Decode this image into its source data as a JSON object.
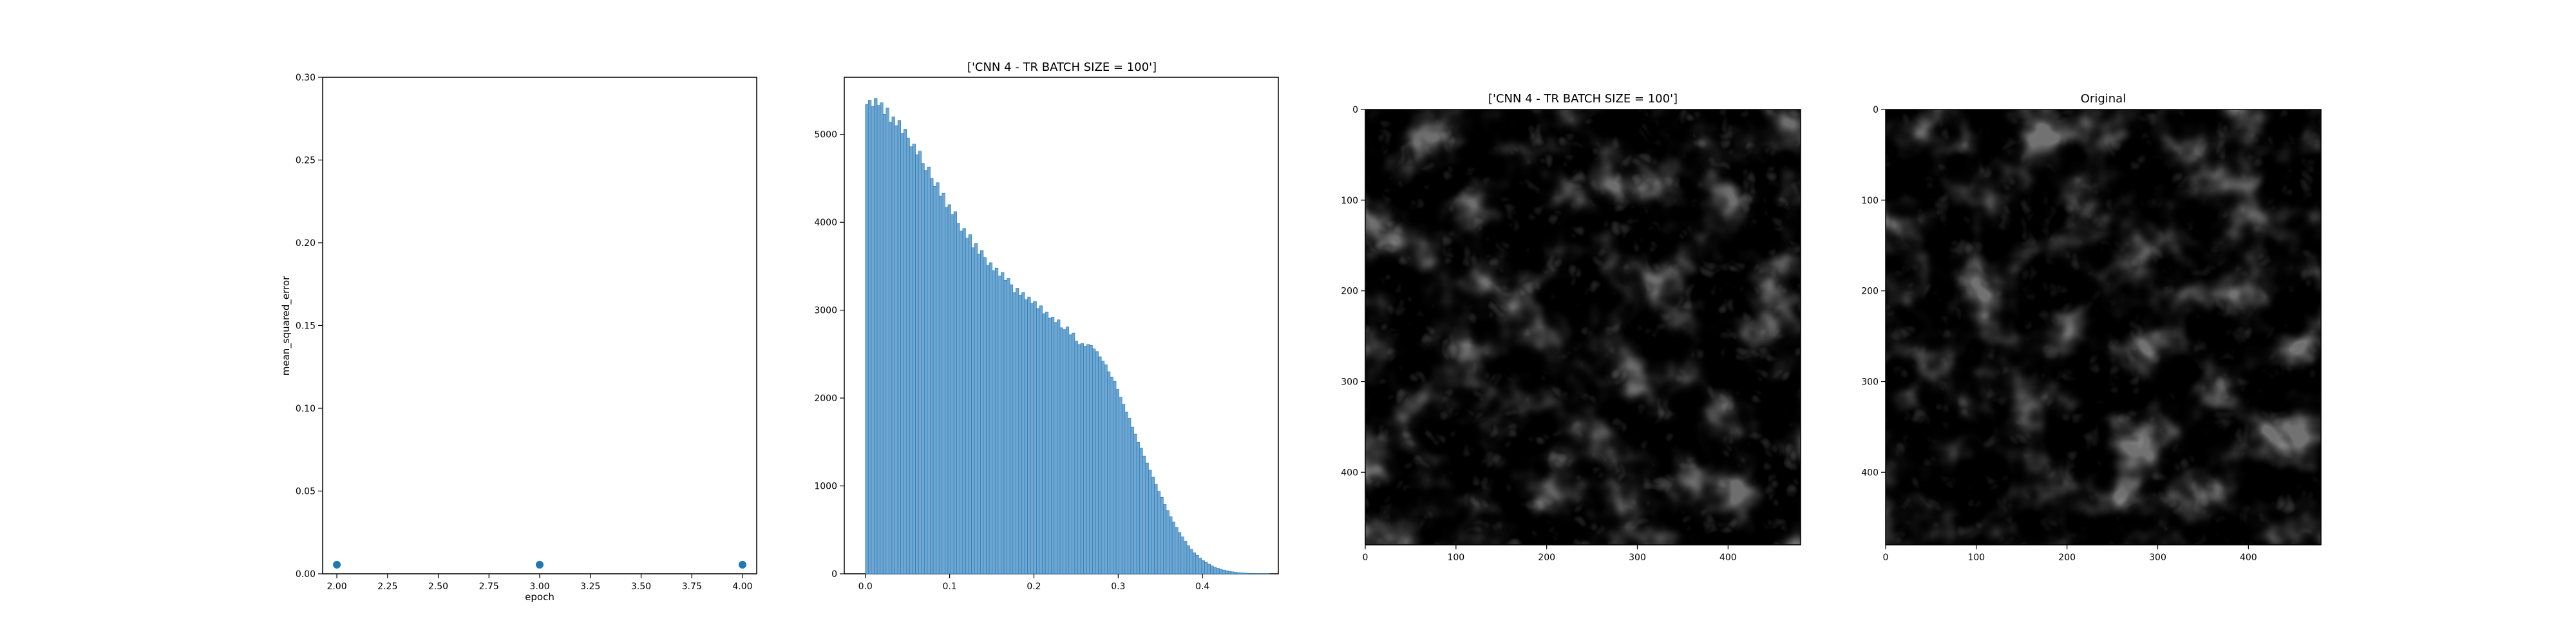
{
  "chart_data": [
    {
      "type": "scatter",
      "title": "",
      "xlabel": "epoch",
      "ylabel": "mean_squared_error",
      "xlim": [
        1.93,
        4.07
      ],
      "ylim": [
        0.0,
        0.3
      ],
      "x_ticks": [
        "2.00",
        "2.25",
        "2.50",
        "2.75",
        "3.00",
        "3.25",
        "3.50",
        "3.75",
        "4.00"
      ],
      "y_ticks": [
        "0.00",
        "0.05",
        "0.10",
        "0.15",
        "0.20",
        "0.25",
        "0.30"
      ],
      "points": [
        {
          "x": 2.0,
          "y": 0.0055
        },
        {
          "x": 3.0,
          "y": 0.0055
        },
        {
          "x": 4.0,
          "y": 0.0055
        }
      ],
      "color": "#1f77b4",
      "grid": false
    },
    {
      "type": "bar",
      "title": "['CNN 4 - TR BATCH SIZE = 100']",
      "xlabel": "",
      "ylabel": "",
      "xlim": [
        -0.025,
        0.49
      ],
      "ylim": [
        0,
        5650
      ],
      "x_ticks": [
        "0.0",
        "0.1",
        "0.2",
        "0.3",
        "0.4"
      ],
      "y_ticks": [
        "0",
        "1000",
        "2000",
        "3000",
        "4000",
        "5000"
      ],
      "bin_width": 0.0035,
      "bin_start": 0.0,
      "counts": [
        5340,
        5390,
        5320,
        5410,
        5330,
        5360,
        5230,
        5300,
        5140,
        5200,
        5100,
        5160,
        5010,
        5060,
        4960,
        4860,
        4890,
        4770,
        4810,
        4670,
        4590,
        4630,
        4500,
        4410,
        4450,
        4300,
        4330,
        4170,
        4200,
        4090,
        4120,
        3990,
        3900,
        3930,
        3820,
        3860,
        3710,
        3760,
        3640,
        3680,
        3600,
        3510,
        3540,
        3450,
        3480,
        3390,
        3430,
        3340,
        3360,
        3290,
        3200,
        3250,
        3170,
        3200,
        3120,
        3150,
        3080,
        3100,
        3020,
        3050,
        2960,
        2980,
        2910,
        2920,
        2860,
        2890,
        2800,
        2780,
        2810,
        2720,
        2740,
        2650,
        2610,
        2620,
        2590,
        2610,
        2600,
        2560,
        2530,
        2470,
        2420,
        2380,
        2300,
        2240,
        2190,
        2100,
        2010,
        1930,
        1840,
        1770,
        1670,
        1590,
        1500,
        1430,
        1340,
        1260,
        1180,
        1100,
        1020,
        940,
        870,
        790,
        720,
        650,
        590,
        530,
        470,
        420,
        370,
        320,
        280,
        240,
        210,
        180,
        150,
        130,
        110,
        90,
        75,
        62,
        52,
        43,
        35,
        29,
        23,
        18,
        14,
        11,
        9,
        7,
        5,
        4,
        3,
        2,
        2,
        1,
        1
      ],
      "color": "#1f77b4",
      "grid": false
    },
    {
      "type": "image",
      "title": "['CNN 4 - TR BATCH SIZE = 100']",
      "xlim": [
        0,
        480
      ],
      "ylim": [
        480,
        0
      ],
      "x_ticks": [
        "0",
        "100",
        "200",
        "300",
        "400"
      ],
      "y_ticks": [
        "0",
        "100",
        "200",
        "300",
        "400"
      ],
      "colormap": "gray"
    },
    {
      "type": "image",
      "title": "Original",
      "xlim": [
        0,
        480
      ],
      "ylim": [
        480,
        0
      ],
      "x_ticks": [
        "0",
        "100",
        "200",
        "300",
        "400"
      ],
      "y_ticks": [
        "0",
        "100",
        "200",
        "300",
        "400"
      ],
      "colormap": "gray"
    }
  ]
}
